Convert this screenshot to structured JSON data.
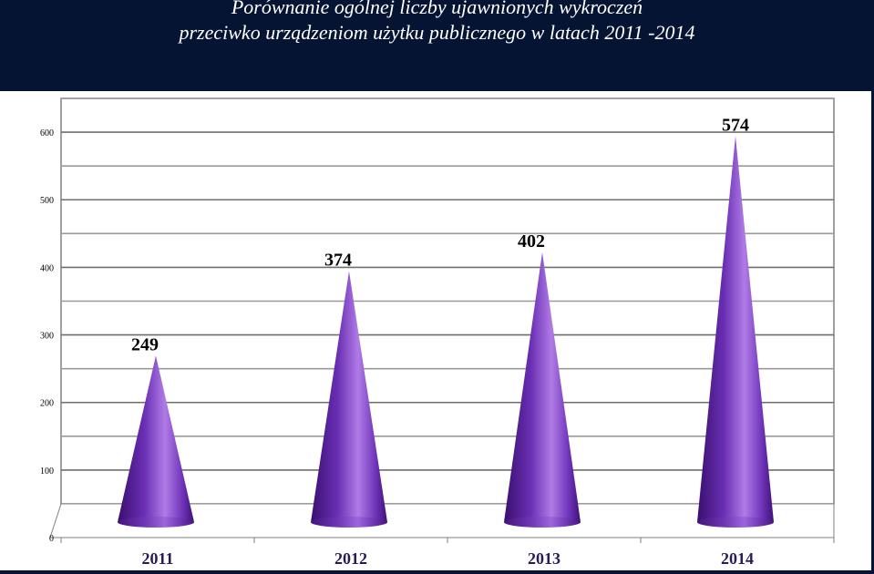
{
  "header": {
    "title_line1": "Porównanie ogólnej liczby ujawnionych wykroczeń",
    "title_line2": "przeciwko urządzeniom użytku publicznego w latach 2011 -2014"
  },
  "colors": {
    "header_bg": "#051433",
    "cone_dark": "#3a0f6e",
    "cone_light": "#b07be6",
    "cone_mid": "#7a3fc0",
    "grid": "#808080",
    "wall": "#ffffff"
  },
  "chart_data": {
    "type": "bar",
    "style": "3d-cone",
    "title": "Porównanie ogólnej liczby ujawnionych wykroczeń przeciwko urządzeniom użytku publicznego w latach 2011 -2014",
    "categories": [
      "2011",
      "2012",
      "2013",
      "2014"
    ],
    "values": [
      249,
      374,
      402,
      574
    ],
    "data_labels": [
      "249",
      "374",
      "402",
      "574"
    ],
    "yticks": [
      "0",
      "100",
      "200",
      "300",
      "400",
      "500",
      "600"
    ],
    "ylim": [
      0,
      600
    ],
    "grid": true,
    "legend": "none"
  }
}
